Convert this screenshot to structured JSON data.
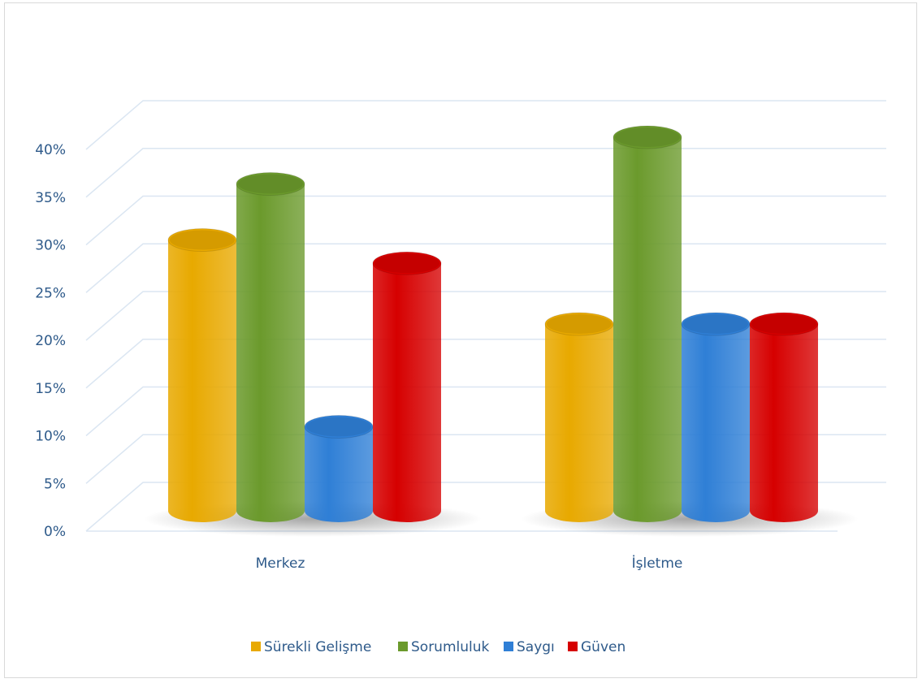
{
  "chart_data": {
    "type": "bar",
    "style": "3d-cylinder",
    "categories": [
      "Merkez",
      "İşletme"
    ],
    "series": [
      {
        "name": "Sürekli Gelişme",
        "color": "#e8a900",
        "values": [
          0.29,
          0.2
        ]
      },
      {
        "name": "Sorumluluk",
        "color": "#6b9a2c",
        "values": [
          0.35,
          0.4
        ]
      },
      {
        "name": "Saygı",
        "color": "#2f7fd6",
        "values": [
          0.09,
          0.2
        ]
      },
      {
        "name": "Güven",
        "color": "#d60000",
        "values": [
          0.265,
          0.2
        ]
      }
    ],
    "yticks": [
      "0%",
      "5%",
      "10%",
      "15%",
      "20%",
      "25%",
      "30%",
      "35%",
      "40%"
    ],
    "ylim": [
      0,
      0.4
    ],
    "grid": true,
    "legend_position": "bottom",
    "title": "",
    "xlabel": "",
    "ylabel": ""
  }
}
